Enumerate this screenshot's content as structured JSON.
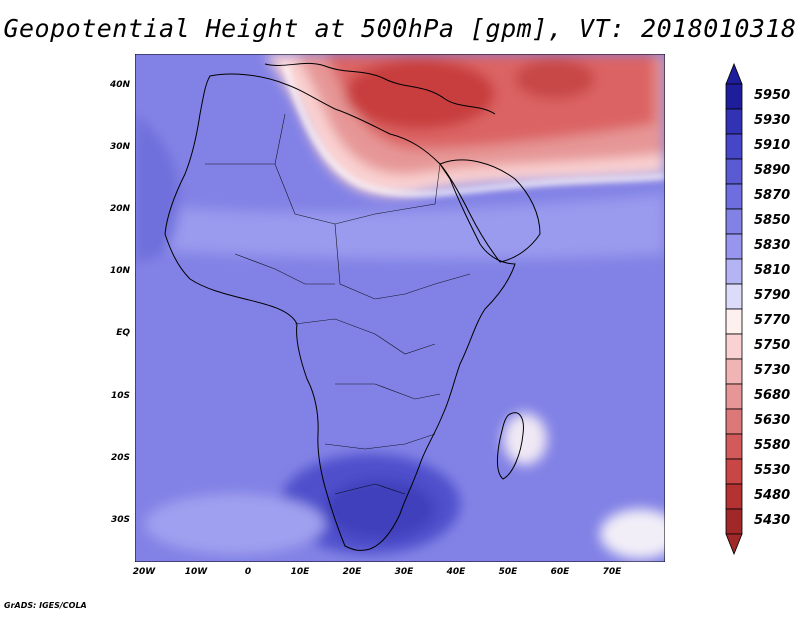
{
  "title": "Geopotential Height at 500hPa [gpm], VT: 2018010318",
  "credit": "GrADS: IGES/COLA",
  "map": {
    "lat_labels": [
      "40N",
      "30N",
      "20N",
      "10N",
      "EQ",
      "10S",
      "20S",
      "30S"
    ],
    "lon_labels": [
      "20W",
      "10W",
      "0",
      "10E",
      "20E",
      "30E",
      "40E",
      "50E",
      "60E",
      "70E"
    ]
  },
  "colorbar": {
    "levels": [
      "5950",
      "5930",
      "5910",
      "5890",
      "5870",
      "5850",
      "5830",
      "5810",
      "5790",
      "5770",
      "5750",
      "5730",
      "5680",
      "5630",
      "5580",
      "5530",
      "5480",
      "5430"
    ],
    "colors": [
      "#1e1e9c",
      "#3232b4",
      "#4646c8",
      "#5a5ad2",
      "#6e6ee0",
      "#8282e6",
      "#9696ee",
      "#b4b4f4",
      "#dcdcfa",
      "#fff0f0",
      "#fad2d2",
      "#f0b4b4",
      "#e69696",
      "#dc7878",
      "#d25a5a",
      "#c84646",
      "#b43232",
      "#a02828"
    ]
  }
}
